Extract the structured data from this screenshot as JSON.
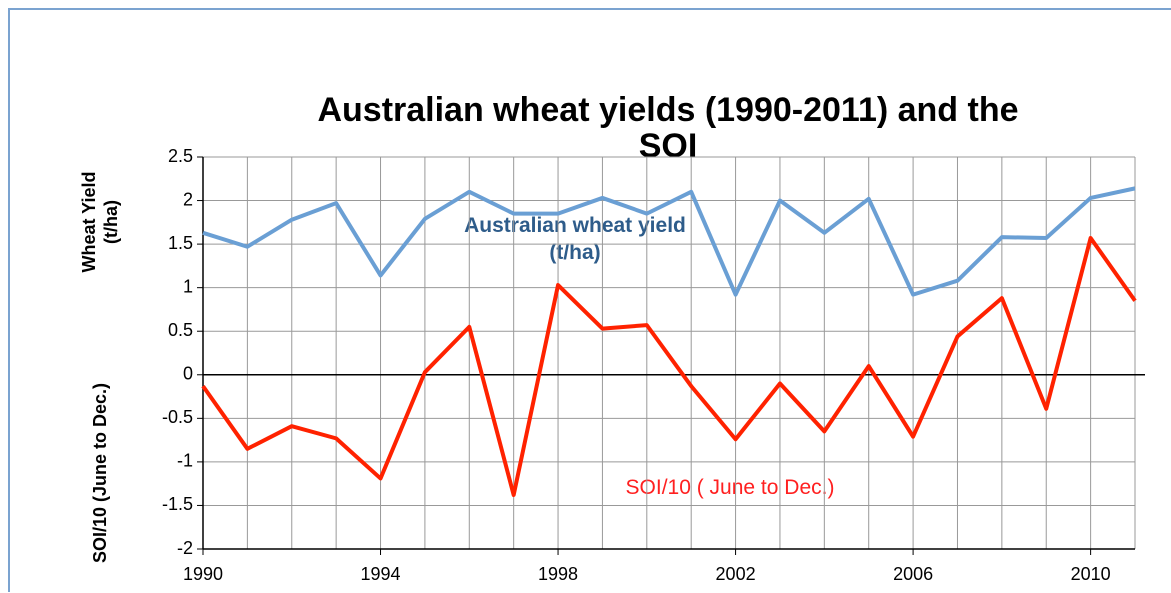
{
  "chart_data": {
    "type": "line",
    "title": "Australian wheat yields (1990-2011) and the SOI",
    "y_label_top": "Wheat Yield (t/ha)",
    "y_label_bottom": "SOI/10 (June to Dec.)",
    "annotations": [
      "Australian wheat yield (t/ha)",
      "SOI/10 ( June to Dec.)"
    ],
    "x": [
      1990,
      1991,
      1992,
      1993,
      1994,
      1995,
      1996,
      1997,
      1998,
      1999,
      2000,
      2001,
      2002,
      2003,
      2004,
      2005,
      2006,
      2007,
      2008,
      2009,
      2010,
      2011
    ],
    "series": [
      {
        "name": "Australian wheat yield (t/ha)",
        "color": "#6a9fd4",
        "values": [
          1.63,
          1.47,
          1.78,
          1.97,
          1.14,
          1.79,
          2.1,
          1.85,
          1.85,
          2.03,
          1.85,
          2.1,
          0.92,
          2.0,
          1.63,
          2.02,
          0.92,
          1.08,
          1.58,
          1.57,
          2.03,
          2.14
        ]
      },
      {
        "name": "SOI/10 ( June to Dec.)",
        "color": "#ff2200",
        "values": [
          -0.13,
          -0.85,
          -0.59,
          -0.73,
          -1.19,
          0.03,
          0.55,
          -1.38,
          1.03,
          0.53,
          0.57,
          -0.13,
          -0.74,
          -0.1,
          -0.65,
          0.1,
          -0.71,
          0.44,
          0.88,
          -0.39,
          1.57,
          0.85
        ]
      }
    ],
    "xlim": [
      1990,
      2011
    ],
    "xticks": [
      1990,
      1994,
      1998,
      2002,
      2006,
      2010
    ],
    "ylim": [
      -2,
      2.5
    ],
    "yticks": [
      -2,
      -1.5,
      -1,
      -0.5,
      0,
      0.5,
      1,
      1.5,
      2,
      2.5
    ],
    "grid": true,
    "zero_line": true
  }
}
